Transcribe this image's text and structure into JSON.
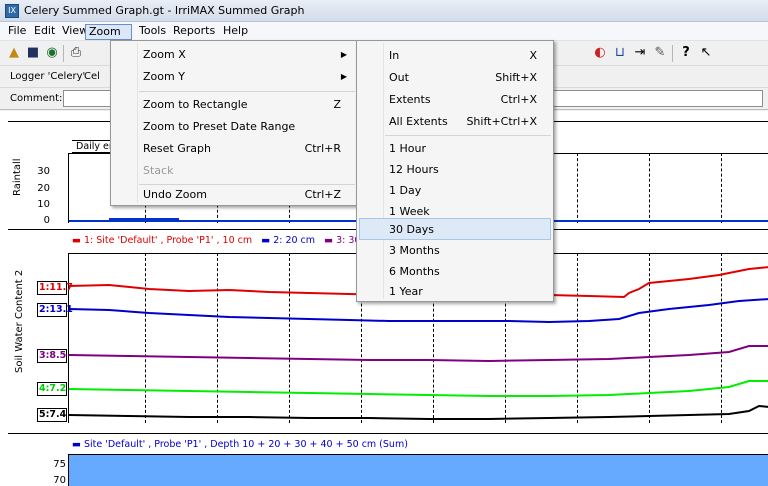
{
  "window": {
    "title": "Celery Summed Graph.gt - IrriMAX Summed Graph",
    "icon": "app-icon"
  },
  "menubar": {
    "items": [
      "File",
      "Edit",
      "View",
      "Zoom",
      "Tools",
      "Reports",
      "Help"
    ],
    "open": "Zoom"
  },
  "toolbar": {
    "icons": [
      "open-folder-icon",
      "save-icon",
      "settings-icon",
      "print-icon"
    ]
  },
  "info": {
    "logger": "Logger 'Celery'",
    "logger_trail": "Cel",
    "comment_label": "Comment:"
  },
  "zoom_menu": {
    "items": [
      {
        "label": "Zoom X",
        "shortcut": "",
        "submenu": true
      },
      {
        "label": "Zoom Y",
        "shortcut": "",
        "submenu": true
      },
      {
        "label": "Zoom to Rectangle",
        "shortcut": "Z"
      },
      {
        "label": "Zoom to Preset Date Range",
        "shortcut": ""
      },
      {
        "label": "Reset Graph",
        "shortcut": "Ctrl+R"
      },
      {
        "label": "Stack",
        "shortcut": "",
        "disabled": true
      },
      {
        "label": "Undo Zoom",
        "shortcut": "Ctrl+Z"
      }
    ]
  },
  "zoomx_menu": {
    "items": [
      {
        "label": "In",
        "shortcut": "X"
      },
      {
        "label": "Out",
        "shortcut": "Shift+X"
      },
      {
        "label": "Extents",
        "shortcut": "Ctrl+X"
      },
      {
        "label": "All Extents",
        "shortcut": "Shift+Ctrl+X"
      },
      {
        "label": "1 Hour",
        "shortcut": ""
      },
      {
        "label": "12 Hours",
        "shortcut": ""
      },
      {
        "label": "1 Day",
        "shortcut": ""
      },
      {
        "label": "1 Week",
        "shortcut": ""
      },
      {
        "label": "30 Days",
        "shortcut": "",
        "highlighted": true
      },
      {
        "label": "3 Months",
        "shortcut": ""
      },
      {
        "label": "6 Months",
        "shortcut": ""
      },
      {
        "label": "1 Year",
        "shortcut": ""
      }
    ]
  },
  "graph": {
    "rainfall": {
      "ylabel": "Raintall",
      "ticks": [
        "30",
        "20",
        "10",
        "0"
      ],
      "legend": "Daily er"
    },
    "soil": {
      "ylabel": "Soil Water Content 2",
      "legend": [
        {
          "text": "1: Site 'Default' , Probe 'P1' , 10 cm",
          "color": "#e00000"
        },
        {
          "text": "2: 20 cm",
          "color": "#0000cc"
        },
        {
          "text": "3: 30 cm",
          "color": "#800080"
        }
      ],
      "badges": [
        {
          "text": "1:11.7",
          "color": "#e00000"
        },
        {
          "text": "2:13.1",
          "color": "#0000cc"
        },
        {
          "text": "3:8.5",
          "color": "#800080"
        },
        {
          "text": "4:7.2",
          "color": "#00cc00"
        },
        {
          "text": "5:7.4",
          "color": "#000000"
        }
      ]
    },
    "sum": {
      "legend": "Site 'Default' , Probe 'P1' , Depth 10 + 20 + 30 + 40 + 50 cm (Sum)",
      "ticks": [
        "75",
        "70"
      ],
      "fill": "#66aaff"
    }
  }
}
